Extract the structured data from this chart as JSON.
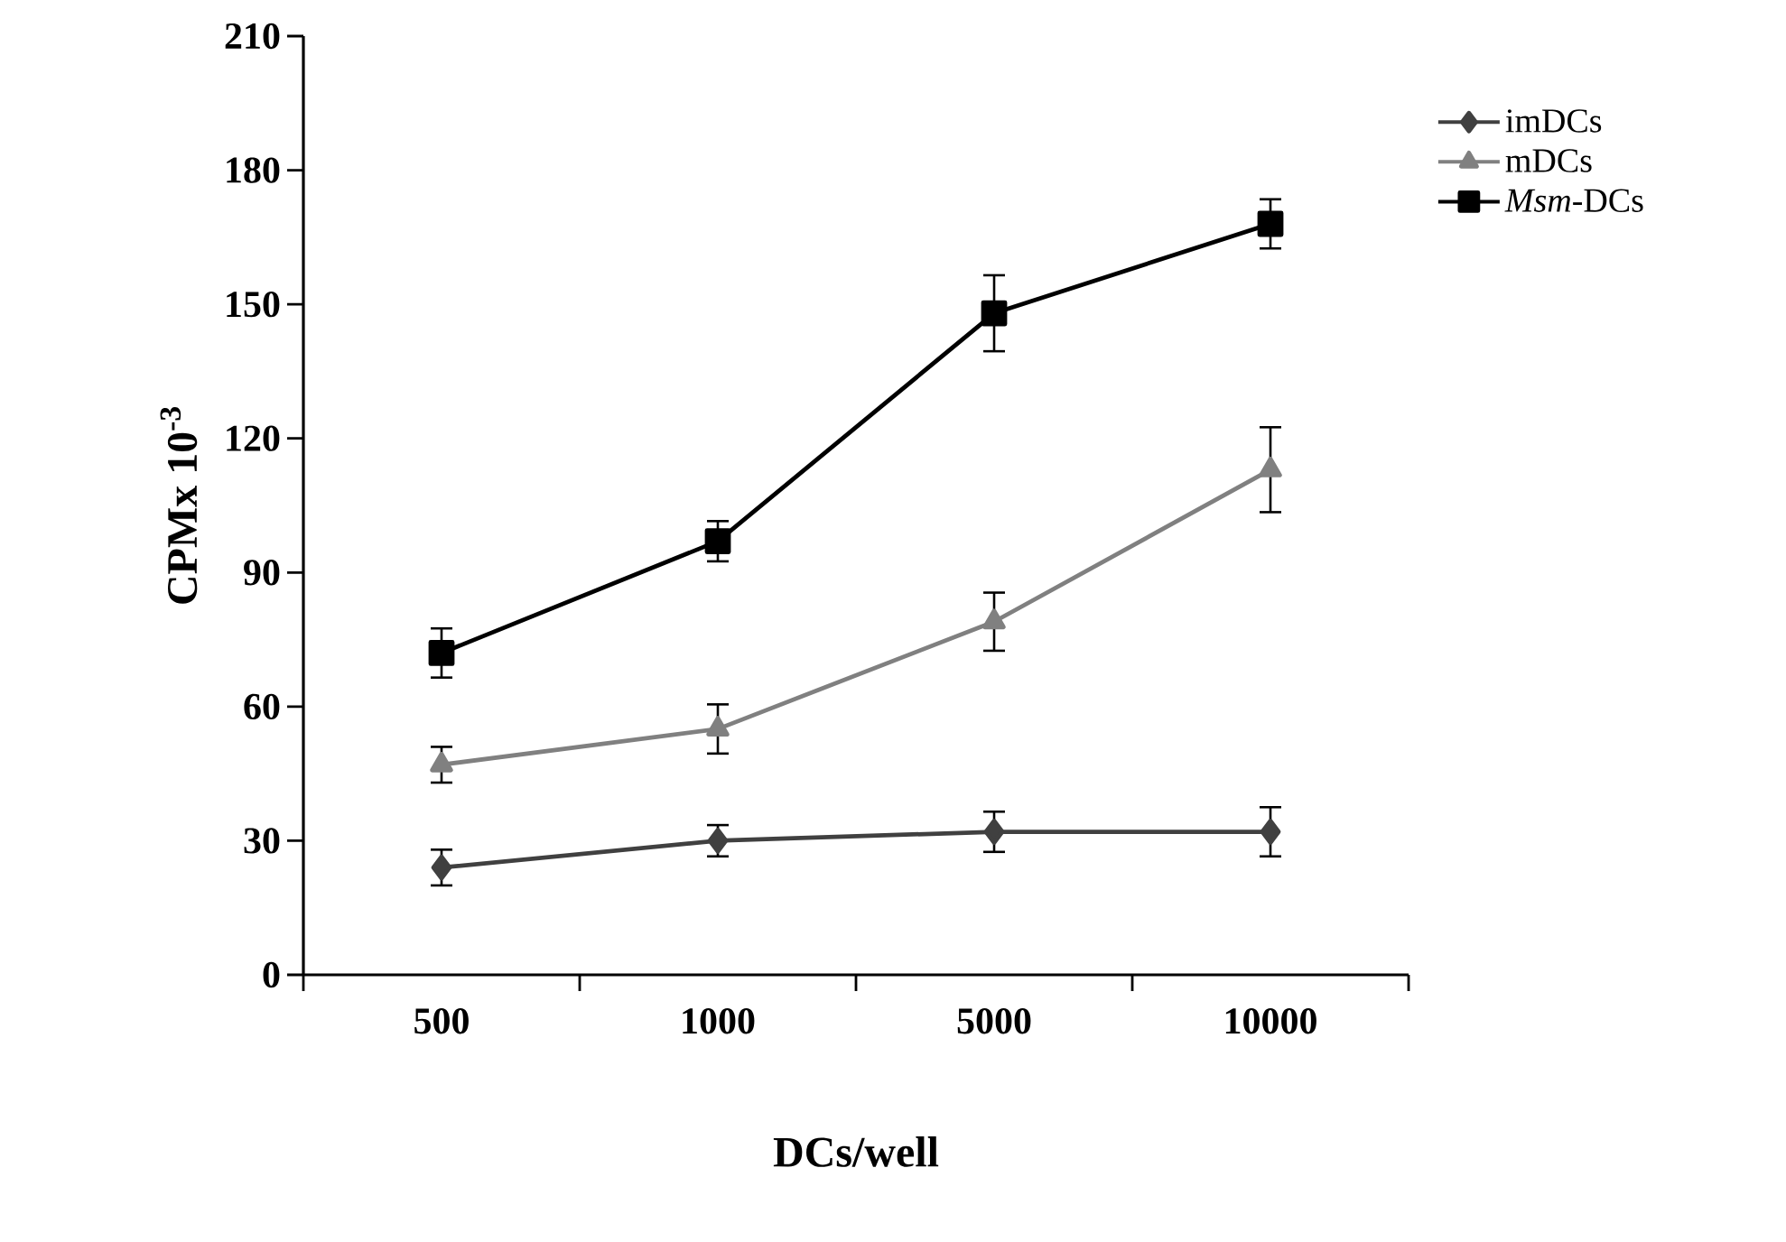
{
  "chart_data": {
    "type": "line",
    "xlabel": "DCs/well",
    "ylabel": "CPMx 10$^{-3}$",
    "categories": [
      "500",
      "1000",
      "5000",
      "10000"
    ],
    "series": [
      {
        "name": "imDCs",
        "color": "#404040",
        "marker": "diamond",
        "values": [
          24,
          30,
          32,
          32
        ],
        "errors": [
          4,
          3.5,
          4.5,
          5.5
        ]
      },
      {
        "name": "mDCs",
        "color": "#808080",
        "marker": "triangle",
        "values": [
          47,
          55,
          79,
          113
        ],
        "errors": [
          4,
          5.5,
          6.5,
          9.5
        ]
      },
      {
        "name": "*Msm*-DCs",
        "color": "#000000",
        "marker": "square",
        "values": [
          72,
          97,
          148,
          168
        ],
        "errors": [
          5.5,
          4.5,
          8.5,
          5.5
        ]
      }
    ],
    "ylim": [
      0,
      210
    ],
    "yticks": [
      0,
      30,
      60,
      90,
      120,
      150,
      180,
      210
    ],
    "grid": false,
    "legend": "right",
    "line_style": "solid"
  }
}
